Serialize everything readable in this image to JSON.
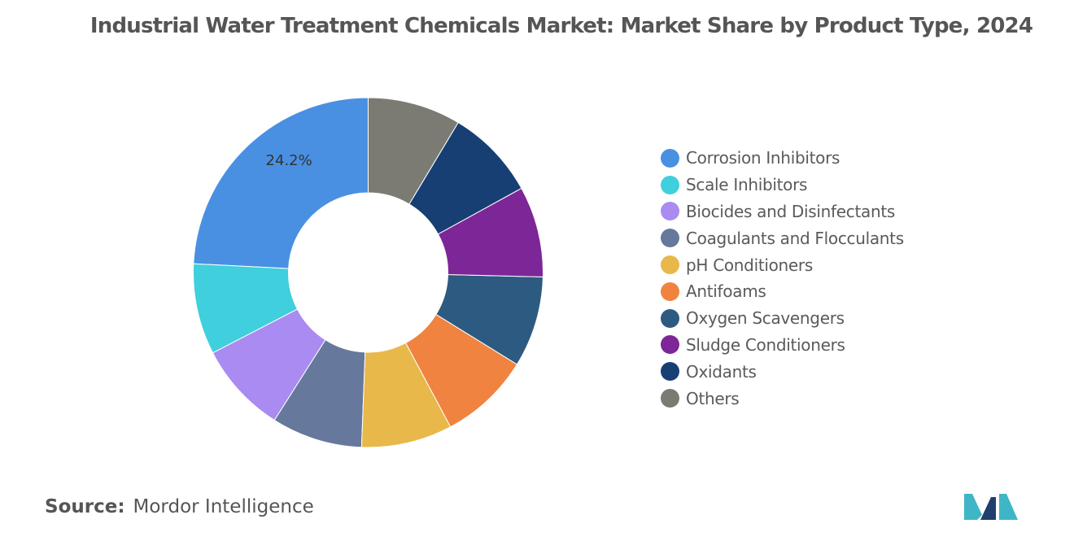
{
  "chart_data": {
    "type": "pie",
    "style": "donut",
    "title": "Industrial Water Treatment Chemicals Market: Market Share by Product Type, 2024",
    "categories": [
      "Corrosion Inhibitors",
      "Scale Inhibitors",
      "Biocides and Disinfectants",
      "Coagulants and Flocculants",
      "pH Conditioners",
      "Antifoams",
      "Oxygen Scavengers",
      "Sludge Conditioners",
      "Oxidants",
      "Others"
    ],
    "values": [
      24.2,
      8.4,
      8.4,
      8.4,
      8.4,
      8.4,
      8.4,
      8.4,
      8.4,
      8.6
    ],
    "colors": [
      "#4a90e2",
      "#40cfdc",
      "#a98bf2",
      "#66789c",
      "#e8b84a",
      "#f08340",
      "#2d5a80",
      "#7d2697",
      "#173f73",
      "#7b7b73"
    ],
    "data_labels": [
      "24.2%",
      "",
      "",
      "",
      "",
      "",
      "",
      "",
      "",
      ""
    ],
    "legend_position": "right"
  },
  "source": {
    "label": "Source:",
    "value": "Mordor Intelligence"
  },
  "logo_colors": [
    "#1f3f6e",
    "#3fb6c6"
  ]
}
